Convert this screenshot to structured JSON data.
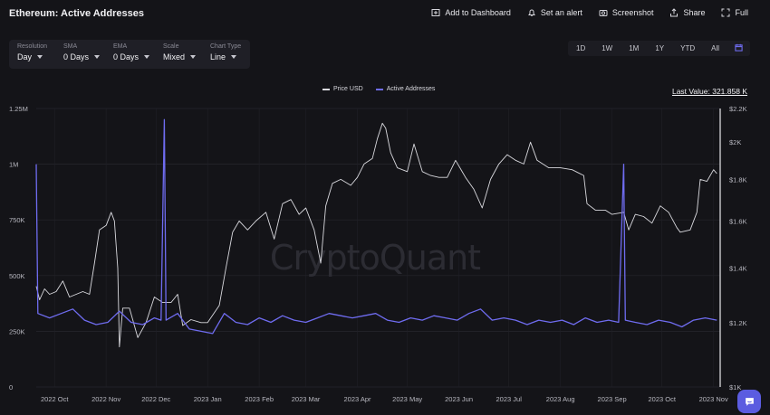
{
  "header": {
    "title": "Ethereum: Active Addresses",
    "actions": [
      {
        "label": "Add to Dashboard",
        "icon": "dashboard-icon"
      },
      {
        "label": "Set an alert",
        "icon": "bell-icon"
      },
      {
        "label": "Screenshot",
        "icon": "camera-icon"
      },
      {
        "label": "Share",
        "icon": "share-icon"
      },
      {
        "label": "Full",
        "icon": "fullscreen-icon"
      }
    ]
  },
  "controls": [
    {
      "label": "Resolution",
      "value": "Day"
    },
    {
      "label": "SMA",
      "value": "0 Days"
    },
    {
      "label": "EMA",
      "value": "0 Days"
    },
    {
      "label": "Scale",
      "value": "Mixed"
    },
    {
      "label": "Chart Type",
      "value": "Line"
    }
  ],
  "ranges": [
    "1D",
    "1W",
    "1M",
    "1Y",
    "YTD",
    "All"
  ],
  "last_value": "Last Value: 321.858 K",
  "watermark": "CryptoQuant",
  "colors": {
    "price": "#d9d9de",
    "active": "#6f6cf0",
    "accent": "#5b5ce0"
  },
  "chart_data": {
    "type": "line",
    "x_ticks": [
      "2022 Oct",
      "2022 Nov",
      "2022 Dec",
      "2023 Jan",
      "2023 Feb",
      "2023 Mar",
      "2023 Apr",
      "2023 May",
      "2023 Jun",
      "2023 Jul",
      "2023 Aug",
      "2023 Sep",
      "2023 Oct",
      "2023 Nov"
    ],
    "x_range": [
      "2022-09-20",
      "2023-11-05"
    ],
    "left_axis": {
      "ticks": [
        "0",
        "250K",
        "500K",
        "750K",
        "1M",
        "1.25M"
      ],
      "range": [
        0,
        1250000
      ]
    },
    "right_axis": {
      "ticks": [
        "$1K",
        "$1.2K",
        "$1.4K",
        "$1.6K",
        "$1.8K",
        "$2K",
        "$2.2K"
      ],
      "range": [
        1000,
        2200
      ],
      "scale": "log"
    },
    "legend_position": "top-center",
    "grid": true,
    "series": [
      {
        "name": "Price USD",
        "axis": "right",
        "points": [
          [
            "2022-09-20",
            1330
          ],
          [
            "2022-09-22",
            1280
          ],
          [
            "2022-09-25",
            1320
          ],
          [
            "2022-09-28",
            1300
          ],
          [
            "2022-10-02",
            1310
          ],
          [
            "2022-10-06",
            1350
          ],
          [
            "2022-10-10",
            1290
          ],
          [
            "2022-10-14",
            1300
          ],
          [
            "2022-10-18",
            1310
          ],
          [
            "2022-10-22",
            1300
          ],
          [
            "2022-10-25",
            1420
          ],
          [
            "2022-10-28",
            1560
          ],
          [
            "2022-11-01",
            1580
          ],
          [
            "2022-11-04",
            1640
          ],
          [
            "2022-11-06",
            1600
          ],
          [
            "2022-11-08",
            1400
          ],
          [
            "2022-11-09",
            1120
          ],
          [
            "2022-11-11",
            1250
          ],
          [
            "2022-11-15",
            1250
          ],
          [
            "2022-11-20",
            1150
          ],
          [
            "2022-11-25",
            1200
          ],
          [
            "2022-11-30",
            1290
          ],
          [
            "2022-12-05",
            1270
          ],
          [
            "2022-12-10",
            1270
          ],
          [
            "2022-12-14",
            1300
          ],
          [
            "2022-12-17",
            1190
          ],
          [
            "2022-12-22",
            1210
          ],
          [
            "2022-12-28",
            1200
          ],
          [
            "2023-01-01",
            1200
          ],
          [
            "2023-01-08",
            1260
          ],
          [
            "2023-01-12",
            1400
          ],
          [
            "2023-01-16",
            1550
          ],
          [
            "2023-01-20",
            1600
          ],
          [
            "2023-01-25",
            1560
          ],
          [
            "2023-01-30",
            1600
          ],
          [
            "2023-02-05",
            1640
          ],
          [
            "2023-02-10",
            1520
          ],
          [
            "2023-02-15",
            1680
          ],
          [
            "2023-02-20",
            1700
          ],
          [
            "2023-02-25",
            1630
          ],
          [
            "2023-03-01",
            1660
          ],
          [
            "2023-03-06",
            1560
          ],
          [
            "2023-03-10",
            1420
          ],
          [
            "2023-03-13",
            1670
          ],
          [
            "2023-03-17",
            1780
          ],
          [
            "2023-03-22",
            1800
          ],
          [
            "2023-03-28",
            1770
          ],
          [
            "2023-04-01",
            1810
          ],
          [
            "2023-04-05",
            1880
          ],
          [
            "2023-04-10",
            1910
          ],
          [
            "2023-04-13",
            2020
          ],
          [
            "2023-04-16",
            2110
          ],
          [
            "2023-04-18",
            2080
          ],
          [
            "2023-04-21",
            1940
          ],
          [
            "2023-04-25",
            1860
          ],
          [
            "2023-05-01",
            1840
          ],
          [
            "2023-05-05",
            1990
          ],
          [
            "2023-05-10",
            1840
          ],
          [
            "2023-05-15",
            1820
          ],
          [
            "2023-05-20",
            1810
          ],
          [
            "2023-05-25",
            1810
          ],
          [
            "2023-05-30",
            1900
          ],
          [
            "2023-06-05",
            1810
          ],
          [
            "2023-06-10",
            1750
          ],
          [
            "2023-06-15",
            1660
          ],
          [
            "2023-06-20",
            1800
          ],
          [
            "2023-06-25",
            1880
          ],
          [
            "2023-06-30",
            1930
          ],
          [
            "2023-07-05",
            1900
          ],
          [
            "2023-07-10",
            1880
          ],
          [
            "2023-07-14",
            2000
          ],
          [
            "2023-07-18",
            1900
          ],
          [
            "2023-07-25",
            1860
          ],
          [
            "2023-08-01",
            1860
          ],
          [
            "2023-08-08",
            1850
          ],
          [
            "2023-08-15",
            1820
          ],
          [
            "2023-08-17",
            1680
          ],
          [
            "2023-08-22",
            1650
          ],
          [
            "2023-08-28",
            1650
          ],
          [
            "2023-09-01",
            1630
          ],
          [
            "2023-09-08",
            1640
          ],
          [
            "2023-09-11",
            1560
          ],
          [
            "2023-09-15",
            1630
          ],
          [
            "2023-09-20",
            1620
          ],
          [
            "2023-09-25",
            1590
          ],
          [
            "2023-09-30",
            1670
          ],
          [
            "2023-10-05",
            1640
          ],
          [
            "2023-10-10",
            1570
          ],
          [
            "2023-10-12",
            1550
          ],
          [
            "2023-10-18",
            1560
          ],
          [
            "2023-10-22",
            1640
          ],
          [
            "2023-10-24",
            1800
          ],
          [
            "2023-10-28",
            1790
          ],
          [
            "2023-11-01",
            1850
          ],
          [
            "2023-11-03",
            1830
          ]
        ]
      },
      {
        "name": "Active Addresses",
        "axis": "left",
        "points": [
          [
            "2022-09-20",
            1000000
          ],
          [
            "2022-09-21",
            330000
          ],
          [
            "2022-09-28",
            310000
          ],
          [
            "2022-10-05",
            330000
          ],
          [
            "2022-10-12",
            350000
          ],
          [
            "2022-10-19",
            300000
          ],
          [
            "2022-10-26",
            280000
          ],
          [
            "2022-11-02",
            290000
          ],
          [
            "2022-11-09",
            340000
          ],
          [
            "2022-11-16",
            290000
          ],
          [
            "2022-11-23",
            280000
          ],
          [
            "2022-11-30",
            310000
          ],
          [
            "2022-12-04",
            300000
          ],
          [
            "2022-12-06",
            1200000
          ],
          [
            "2022-12-07",
            300000
          ],
          [
            "2022-12-14",
            330000
          ],
          [
            "2022-12-21",
            260000
          ],
          [
            "2022-12-28",
            250000
          ],
          [
            "2023-01-04",
            240000
          ],
          [
            "2023-01-11",
            330000
          ],
          [
            "2023-01-18",
            290000
          ],
          [
            "2023-01-25",
            280000
          ],
          [
            "2023-02-01",
            310000
          ],
          [
            "2023-02-08",
            290000
          ],
          [
            "2023-02-15",
            320000
          ],
          [
            "2023-02-22",
            300000
          ],
          [
            "2023-03-01",
            290000
          ],
          [
            "2023-03-08",
            310000
          ],
          [
            "2023-03-15",
            330000
          ],
          [
            "2023-03-22",
            320000
          ],
          [
            "2023-03-29",
            310000
          ],
          [
            "2023-04-05",
            320000
          ],
          [
            "2023-04-12",
            330000
          ],
          [
            "2023-04-19",
            300000
          ],
          [
            "2023-04-26",
            290000
          ],
          [
            "2023-05-03",
            310000
          ],
          [
            "2023-05-10",
            300000
          ],
          [
            "2023-05-17",
            320000
          ],
          [
            "2023-05-24",
            310000
          ],
          [
            "2023-05-31",
            300000
          ],
          [
            "2023-06-07",
            330000
          ],
          [
            "2023-06-14",
            350000
          ],
          [
            "2023-06-21",
            300000
          ],
          [
            "2023-06-28",
            310000
          ],
          [
            "2023-07-05",
            300000
          ],
          [
            "2023-07-12",
            280000
          ],
          [
            "2023-07-19",
            300000
          ],
          [
            "2023-07-26",
            290000
          ],
          [
            "2023-08-02",
            300000
          ],
          [
            "2023-08-09",
            280000
          ],
          [
            "2023-08-16",
            310000
          ],
          [
            "2023-08-23",
            290000
          ],
          [
            "2023-08-30",
            300000
          ],
          [
            "2023-09-05",
            290000
          ],
          [
            "2023-09-08",
            1000000
          ],
          [
            "2023-09-09",
            300000
          ],
          [
            "2023-09-15",
            290000
          ],
          [
            "2023-09-22",
            280000
          ],
          [
            "2023-09-29",
            300000
          ],
          [
            "2023-10-06",
            290000
          ],
          [
            "2023-10-13",
            270000
          ],
          [
            "2023-10-20",
            300000
          ],
          [
            "2023-10-27",
            310000
          ],
          [
            "2023-11-03",
            300000
          ]
        ]
      }
    ]
  }
}
